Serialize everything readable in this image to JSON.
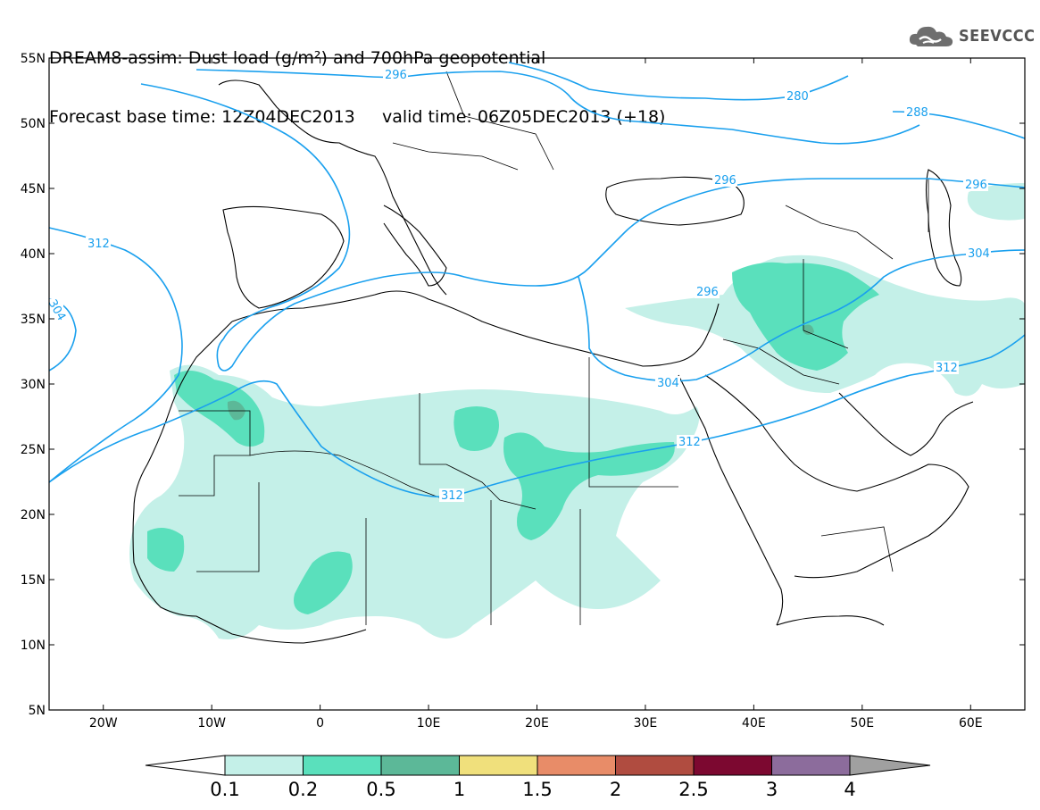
{
  "title": {
    "line1": "DREAM8-assim: Dust load (g/m²) and 700hPa geopotential",
    "line2": "Forecast base time: 12Z04DEC2013     valid time: 06Z05DEC2013 (+18)"
  },
  "logo": {
    "text": "SEEVCCC",
    "icon": "cloud-icon"
  },
  "map": {
    "lat_ticks": [
      "55N",
      "50N",
      "45N",
      "40N",
      "35N",
      "30N",
      "25N",
      "20N",
      "15N",
      "10N",
      "5N"
    ],
    "lon_ticks": [
      "20W",
      "10W",
      "0",
      "10E",
      "20E",
      "30E",
      "40E",
      "50E",
      "60E"
    ],
    "lat_range": [
      5,
      55
    ],
    "lon_range": [
      -25,
      65
    ],
    "contour_color": "#1aa0ee",
    "contour_labels": [
      "296",
      "280",
      "288",
      "296",
      "296",
      "312",
      "304",
      "296",
      "304",
      "312",
      "312",
      "312",
      "304"
    ]
  },
  "colorbar": {
    "levels": [
      "0.1",
      "0.2",
      "0.5",
      "1",
      "1.5",
      "2",
      "2.5",
      "3",
      "4"
    ],
    "colors": [
      "#ffffff",
      "#c4f0e8",
      "#5ae0bc",
      "#5cb898",
      "#f0e07c",
      "#e88c68",
      "#b04c40",
      "#7c0830",
      "#8c6c9c",
      "#a0a0a0"
    ]
  }
}
